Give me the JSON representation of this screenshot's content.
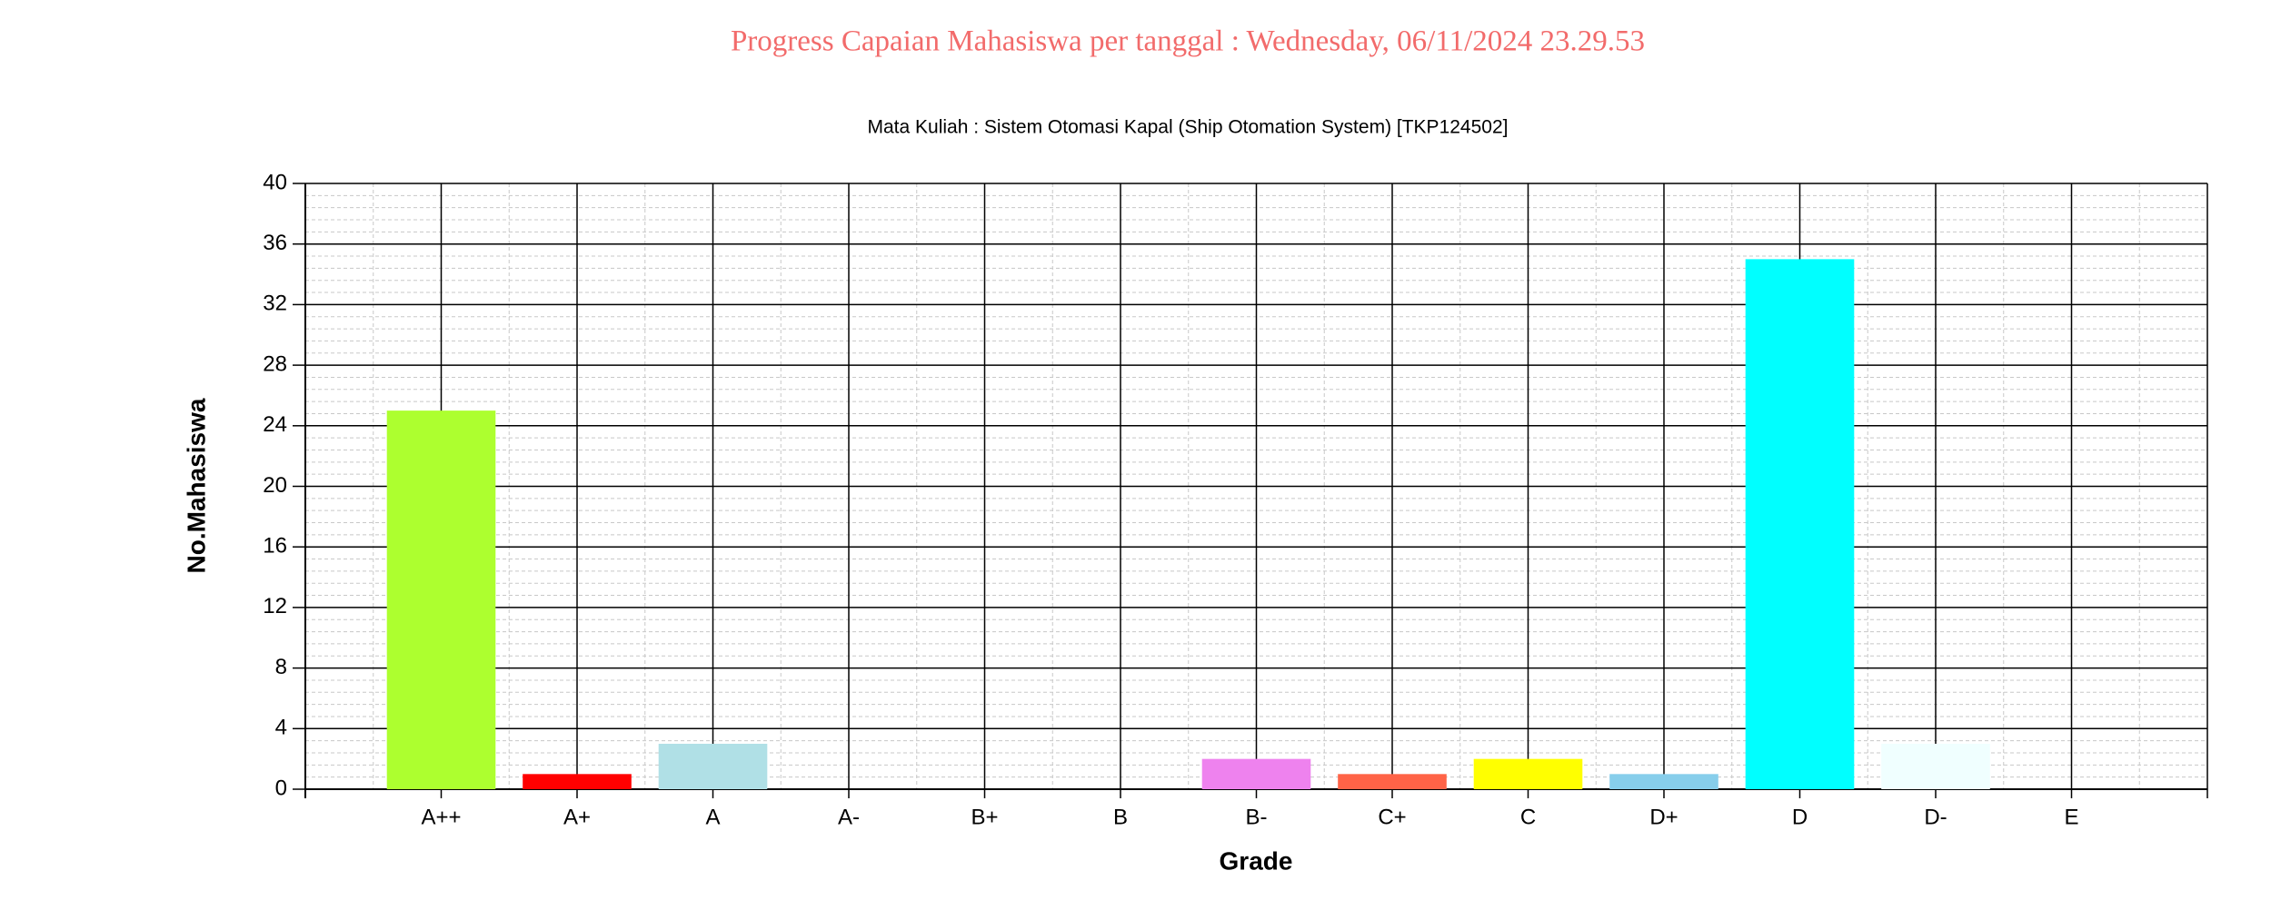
{
  "chart_data": {
    "type": "bar",
    "title": "Progress Capaian Mahasiswa per tanggal : Wednesday, 06/11/2024 23.29.53",
    "subtitle": "Mata Kuliah : Sistem Otomasi Kapal (Ship Otomation System) [TKP124502]",
    "x_label": "Grade",
    "y_label": "No.Mahasiswa",
    "categories": [
      "A++",
      "A+",
      "A",
      "A-",
      "B+",
      "B",
      "B-",
      "C+",
      "C",
      "D+",
      "D",
      "D-",
      "E"
    ],
    "values": [
      25,
      1,
      3,
      0,
      0,
      0,
      2,
      1,
      2,
      1,
      35,
      3,
      0
    ],
    "colors": [
      "#adff2f",
      "#ff0000",
      "#b0e0e6",
      null,
      null,
      null,
      "#ee82ee",
      "#ff6347",
      "#ffff00",
      "#87ceeb",
      "#00ffff",
      "#f0ffff",
      null
    ],
    "ylim": [
      0,
      40
    ],
    "yticks": [
      0,
      4,
      8,
      12,
      16,
      20,
      24,
      28,
      32,
      36,
      40
    ],
    "grid": true
  }
}
